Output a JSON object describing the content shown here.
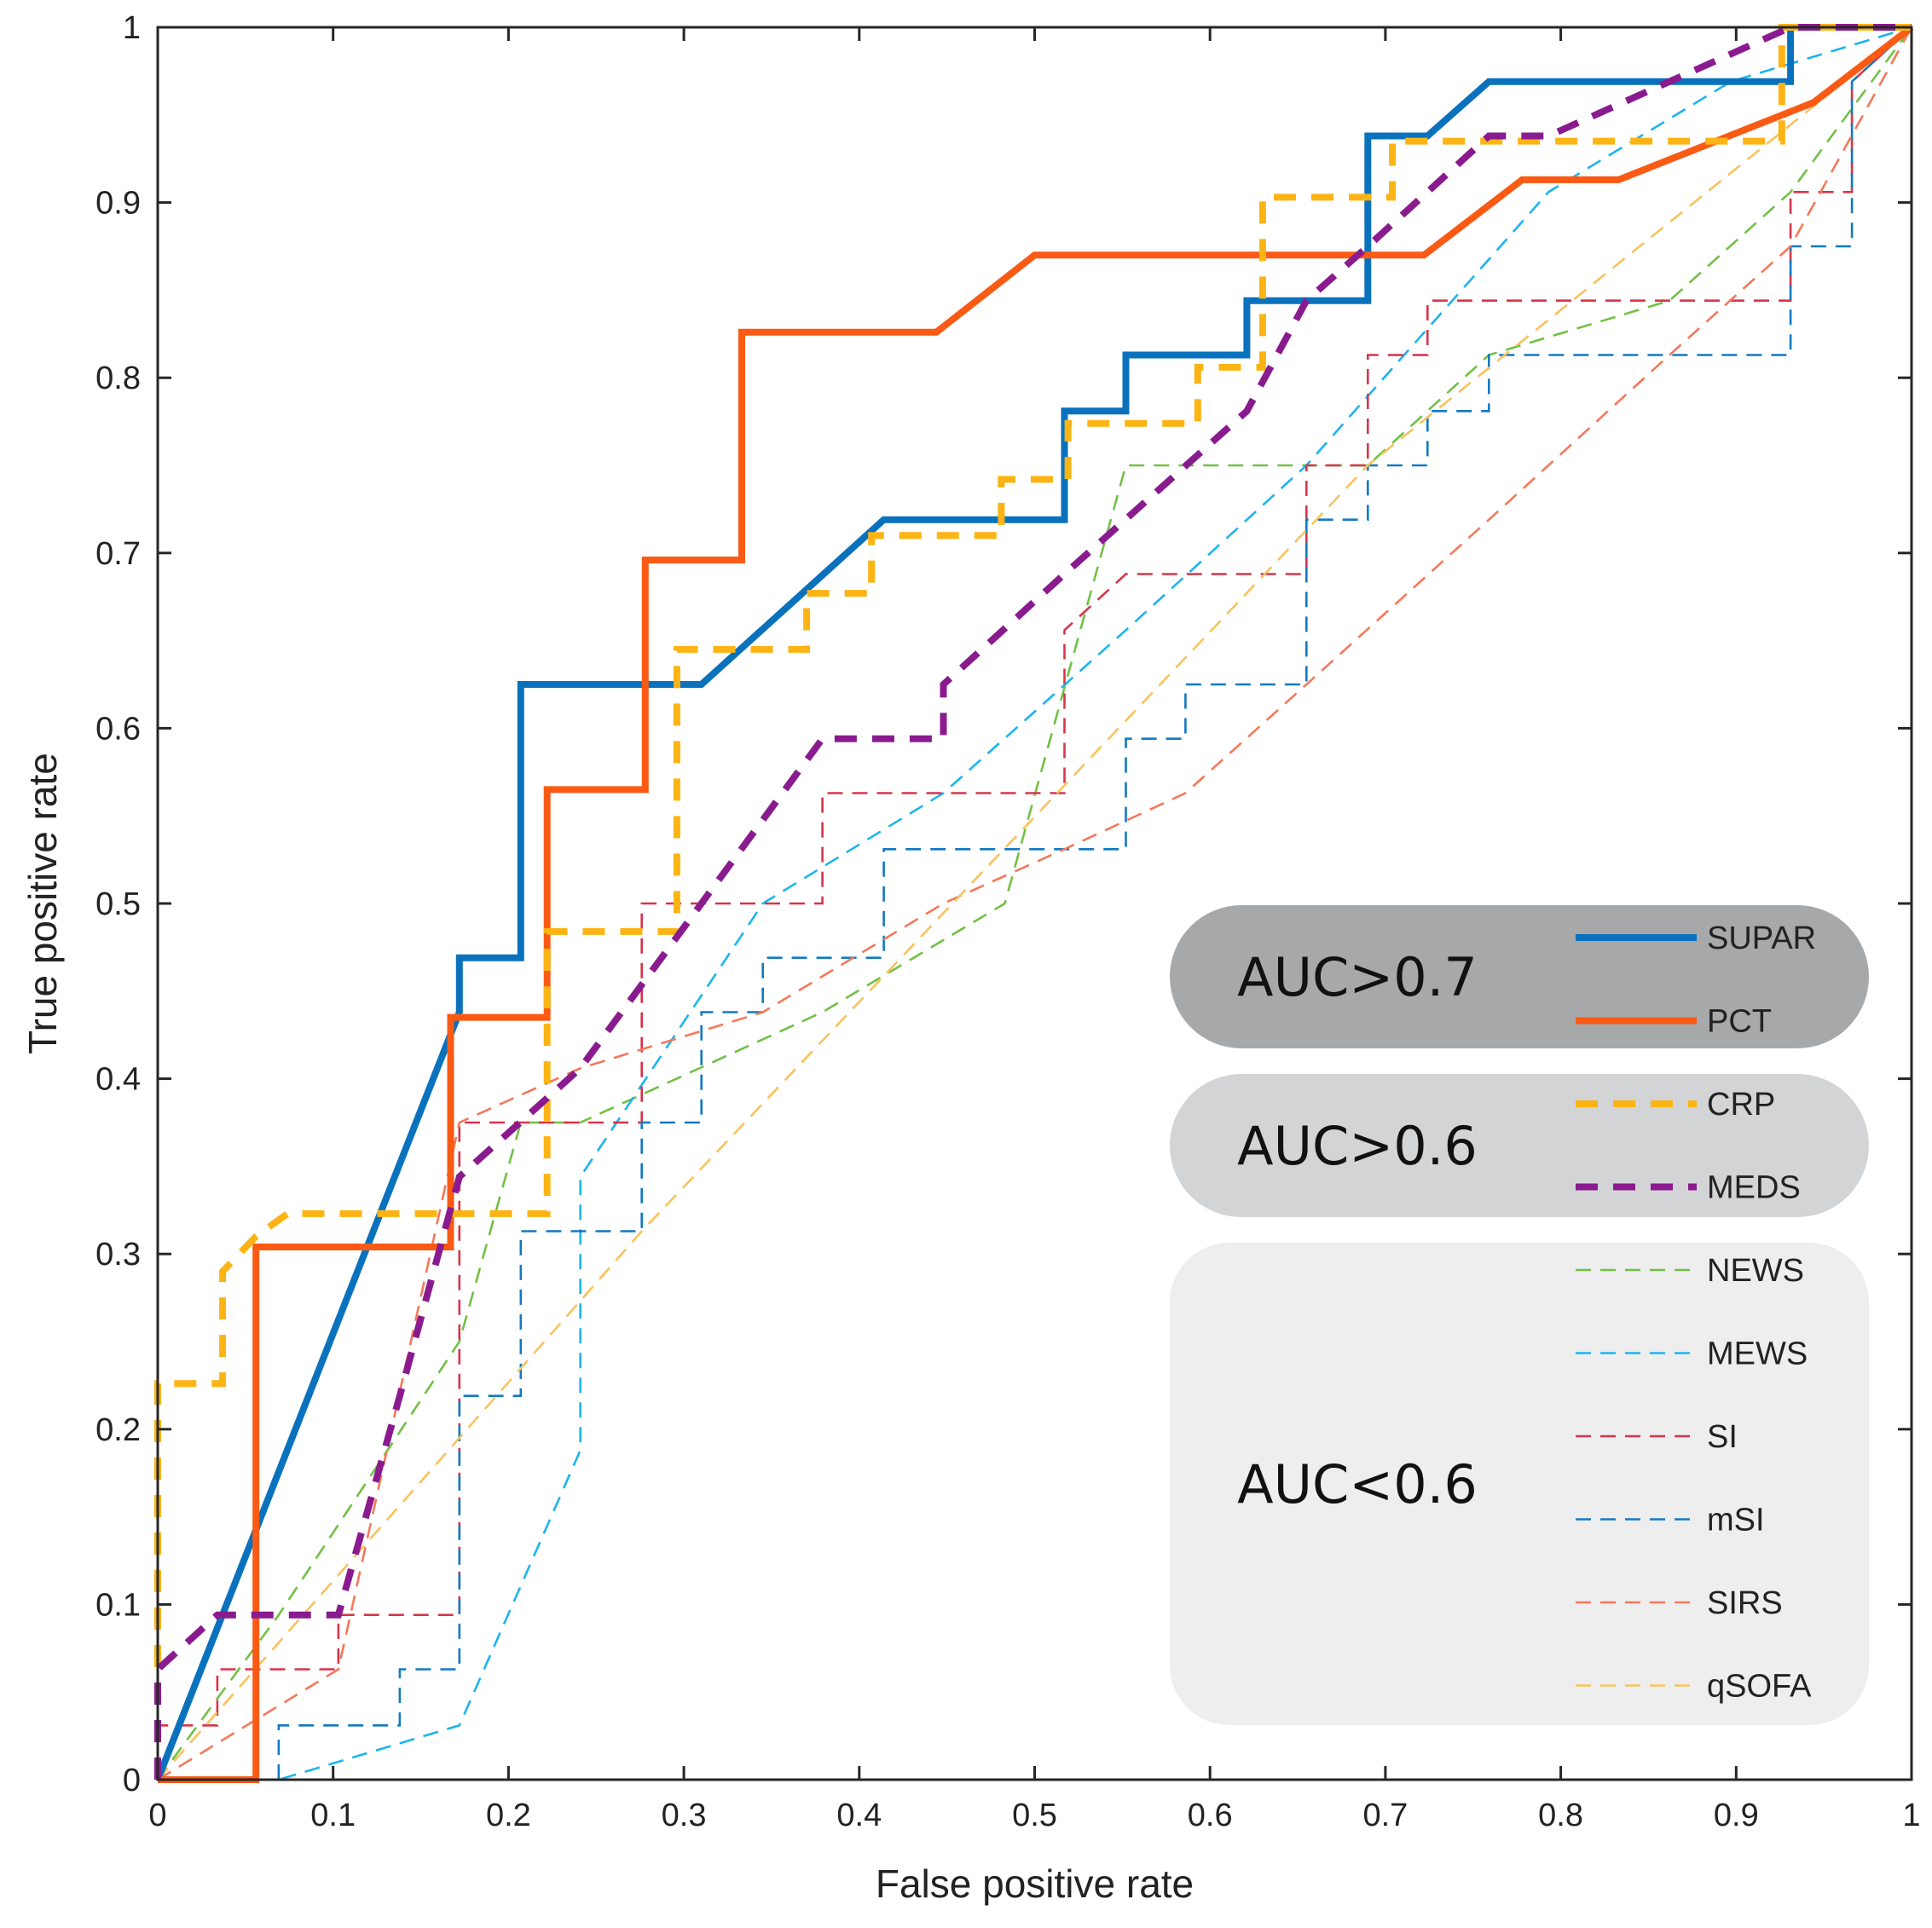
{
  "chart_data": {
    "type": "line",
    "title": "",
    "xlabel": "False positive rate",
    "ylabel": "True positive rate",
    "xlim": [
      0,
      1
    ],
    "ylim": [
      0,
      1
    ],
    "xticks": [
      "0",
      "0.1",
      "0.2",
      "0.3",
      "0.4",
      "0.5",
      "0.6",
      "0.7",
      "0.8",
      "0.9",
      "1"
    ],
    "yticks": [
      "0",
      "0.1",
      "0.2",
      "0.3",
      "0.4",
      "0.5",
      "0.6",
      "0.7",
      "0.8",
      "0.9",
      "1"
    ],
    "grid": false,
    "legend_position": "bottom-right",
    "groups": [
      {
        "label": "AUC>0.7",
        "color": "#a7a8aa",
        "members": [
          "SUPAR",
          "PCT"
        ]
      },
      {
        "label": "AUC>0.6",
        "color": "#d3d4d6",
        "members": [
          "CRP",
          "MEDS"
        ]
      },
      {
        "label": "AUC<0.6",
        "color": "#eeeeee",
        "members": [
          "NEWS",
          "MEWS",
          "SI",
          "mSI",
          "SIRS",
          "qSOFA"
        ]
      }
    ],
    "series": [
      {
        "name": "SUPAR",
        "color": "#0a72bd",
        "style": "solid",
        "weight": "thick",
        "x": [
          0,
          0.172,
          0.172,
          0.207,
          0.207,
          0.31,
          0.414,
          0.517,
          0.517,
          0.552,
          0.552,
          0.621,
          0.621,
          0.69,
          0.69,
          0.724,
          0.759,
          0.931,
          0.931,
          1.0
        ],
        "y": [
          0,
          0.438,
          0.469,
          0.469,
          0.625,
          0.625,
          0.719,
          0.719,
          0.781,
          0.781,
          0.813,
          0.813,
          0.844,
          0.844,
          0.938,
          0.938,
          0.969,
          0.969,
          1.0,
          1.0
        ]
      },
      {
        "name": "PCT",
        "color": "#fa5a14",
        "style": "solid",
        "weight": "thick",
        "x": [
          0,
          0.056,
          0.056,
          0.167,
          0.167,
          0.222,
          0.222,
          0.278,
          0.278,
          0.333,
          0.333,
          0.444,
          0.5,
          0.722,
          0.778,
          0.833,
          0.944,
          1.0
        ],
        "y": [
          0,
          0,
          0.304,
          0.304,
          0.435,
          0.435,
          0.565,
          0.565,
          0.696,
          0.696,
          0.826,
          0.826,
          0.87,
          0.87,
          0.913,
          0.913,
          0.957,
          1.0
        ]
      },
      {
        "name": "CRP",
        "color": "#fbb414",
        "style": "dashed",
        "weight": "thick",
        "x": [
          0,
          0,
          0.037,
          0.037,
          0.056,
          0.074,
          0.222,
          0.222,
          0.296,
          0.296,
          0.37,
          0.37,
          0.407,
          0.407,
          0.481,
          0.481,
          0.519,
          0.519,
          0.593,
          0.593,
          0.63,
          0.63,
          0.704,
          0.704,
          0.926,
          0.926,
          1.0
        ],
        "y": [
          0,
          0.226,
          0.226,
          0.29,
          0.31,
          0.323,
          0.323,
          0.484,
          0.484,
          0.645,
          0.645,
          0.677,
          0.677,
          0.71,
          0.71,
          0.742,
          0.742,
          0.774,
          0.774,
          0.806,
          0.806,
          0.903,
          0.903,
          0.935,
          0.935,
          1.0,
          1.0
        ]
      },
      {
        "name": "MEDS",
        "color": "#8a1b8f",
        "style": "dashed",
        "weight": "thick",
        "x": [
          0,
          0,
          0.034,
          0.103,
          0.138,
          0.172,
          0.241,
          0.31,
          0.379,
          0.448,
          0.448,
          0.517,
          0.621,
          0.655,
          0.69,
          0.759,
          0.793,
          0.862,
          0.931,
          1.0
        ],
        "y": [
          0,
          0.063,
          0.094,
          0.094,
          0.219,
          0.344,
          0.406,
          0.5,
          0.594,
          0.594,
          0.625,
          0.688,
          0.781,
          0.844,
          0.875,
          0.938,
          0.938,
          0.969,
          1.0,
          1.0
        ]
      },
      {
        "name": "NEWS",
        "color": "#72c045",
        "style": "dashed",
        "weight": "thin",
        "x": [
          0,
          0.069,
          0.172,
          0.207,
          0.241,
          0.379,
          0.483,
          0.552,
          0.69,
          0.759,
          0.862,
          0.931,
          1.0
        ],
        "y": [
          0,
          0.094,
          0.25,
          0.375,
          0.375,
          0.438,
          0.5,
          0.75,
          0.75,
          0.813,
          0.844,
          0.906,
          1.0
        ]
      },
      {
        "name": "MEWS",
        "color": "#1cb4ee",
        "style": "dashed",
        "weight": "thin",
        "x": [
          0,
          0.069,
          0.172,
          0.241,
          0.241,
          0.345,
          0.448,
          0.552,
          0.655,
          0.793,
          0.897,
          1.0
        ],
        "y": [
          0,
          0,
          0.031,
          0.188,
          0.344,
          0.5,
          0.563,
          0.656,
          0.75,
          0.906,
          0.969,
          1.0
        ]
      },
      {
        "name": "SI",
        "color": "#d6354a",
        "style": "dashed",
        "weight": "thin",
        "x": [
          0,
          0,
          0.034,
          0.034,
          0.103,
          0.103,
          0.172,
          0.172,
          0.241,
          0.241,
          0.276,
          0.276,
          0.379,
          0.379,
          0.517,
          0.517,
          0.552,
          0.655,
          0.655,
          0.69,
          0.69,
          0.724,
          0.724,
          0.931,
          0.931,
          0.966,
          0.966,
          1.0
        ],
        "y": [
          0,
          0.031,
          0.031,
          0.063,
          0.063,
          0.094,
          0.094,
          0.375,
          0.375,
          0.375,
          0.375,
          0.5,
          0.5,
          0.563,
          0.563,
          0.656,
          0.688,
          0.688,
          0.75,
          0.75,
          0.813,
          0.813,
          0.844,
          0.844,
          0.906,
          0.906,
          0.969,
          1.0
        ]
      },
      {
        "name": "mSI",
        "color": "#1279c2",
        "style": "dashed",
        "weight": "thin",
        "x": [
          0.069,
          0.069,
          0.138,
          0.138,
          0.172,
          0.172,
          0.207,
          0.207,
          0.276,
          0.276,
          0.31,
          0.31,
          0.345,
          0.345,
          0.414,
          0.414,
          0.552,
          0.552,
          0.586,
          0.586,
          0.655,
          0.655,
          0.69,
          0.69,
          0.724,
          0.724,
          0.759,
          0.759,
          0.931,
          0.931,
          0.966,
          0.966,
          1.0
        ],
        "y": [
          0,
          0.031,
          0.031,
          0.063,
          0.063,
          0.219,
          0.219,
          0.313,
          0.313,
          0.375,
          0.375,
          0.438,
          0.438,
          0.469,
          0.469,
          0.531,
          0.531,
          0.594,
          0.594,
          0.625,
          0.625,
          0.719,
          0.719,
          0.75,
          0.75,
          0.781,
          0.781,
          0.813,
          0.813,
          0.875,
          0.875,
          0.969,
          1.0
        ]
      },
      {
        "name": "SIRS",
        "color": "#f5785a",
        "style": "dashed",
        "weight": "thin",
        "x": [
          0,
          0.103,
          0.172,
          0.241,
          0.345,
          0.448,
          0.517,
          0.586,
          0.655,
          0.759,
          0.862,
          0.931,
          1.0
        ],
        "y": [
          0,
          0.063,
          0.375,
          0.406,
          0.438,
          0.5,
          0.531,
          0.563,
          0.625,
          0.719,
          0.813,
          0.875,
          1.0
        ]
      },
      {
        "name": "qSOFA",
        "color": "#f9c25c",
        "style": "dashed",
        "weight": "thin",
        "x": [
          0,
          0.276,
          0.69,
          1.0
        ],
        "y": [
          0,
          0.313,
          0.75,
          1.0
        ]
      }
    ]
  }
}
